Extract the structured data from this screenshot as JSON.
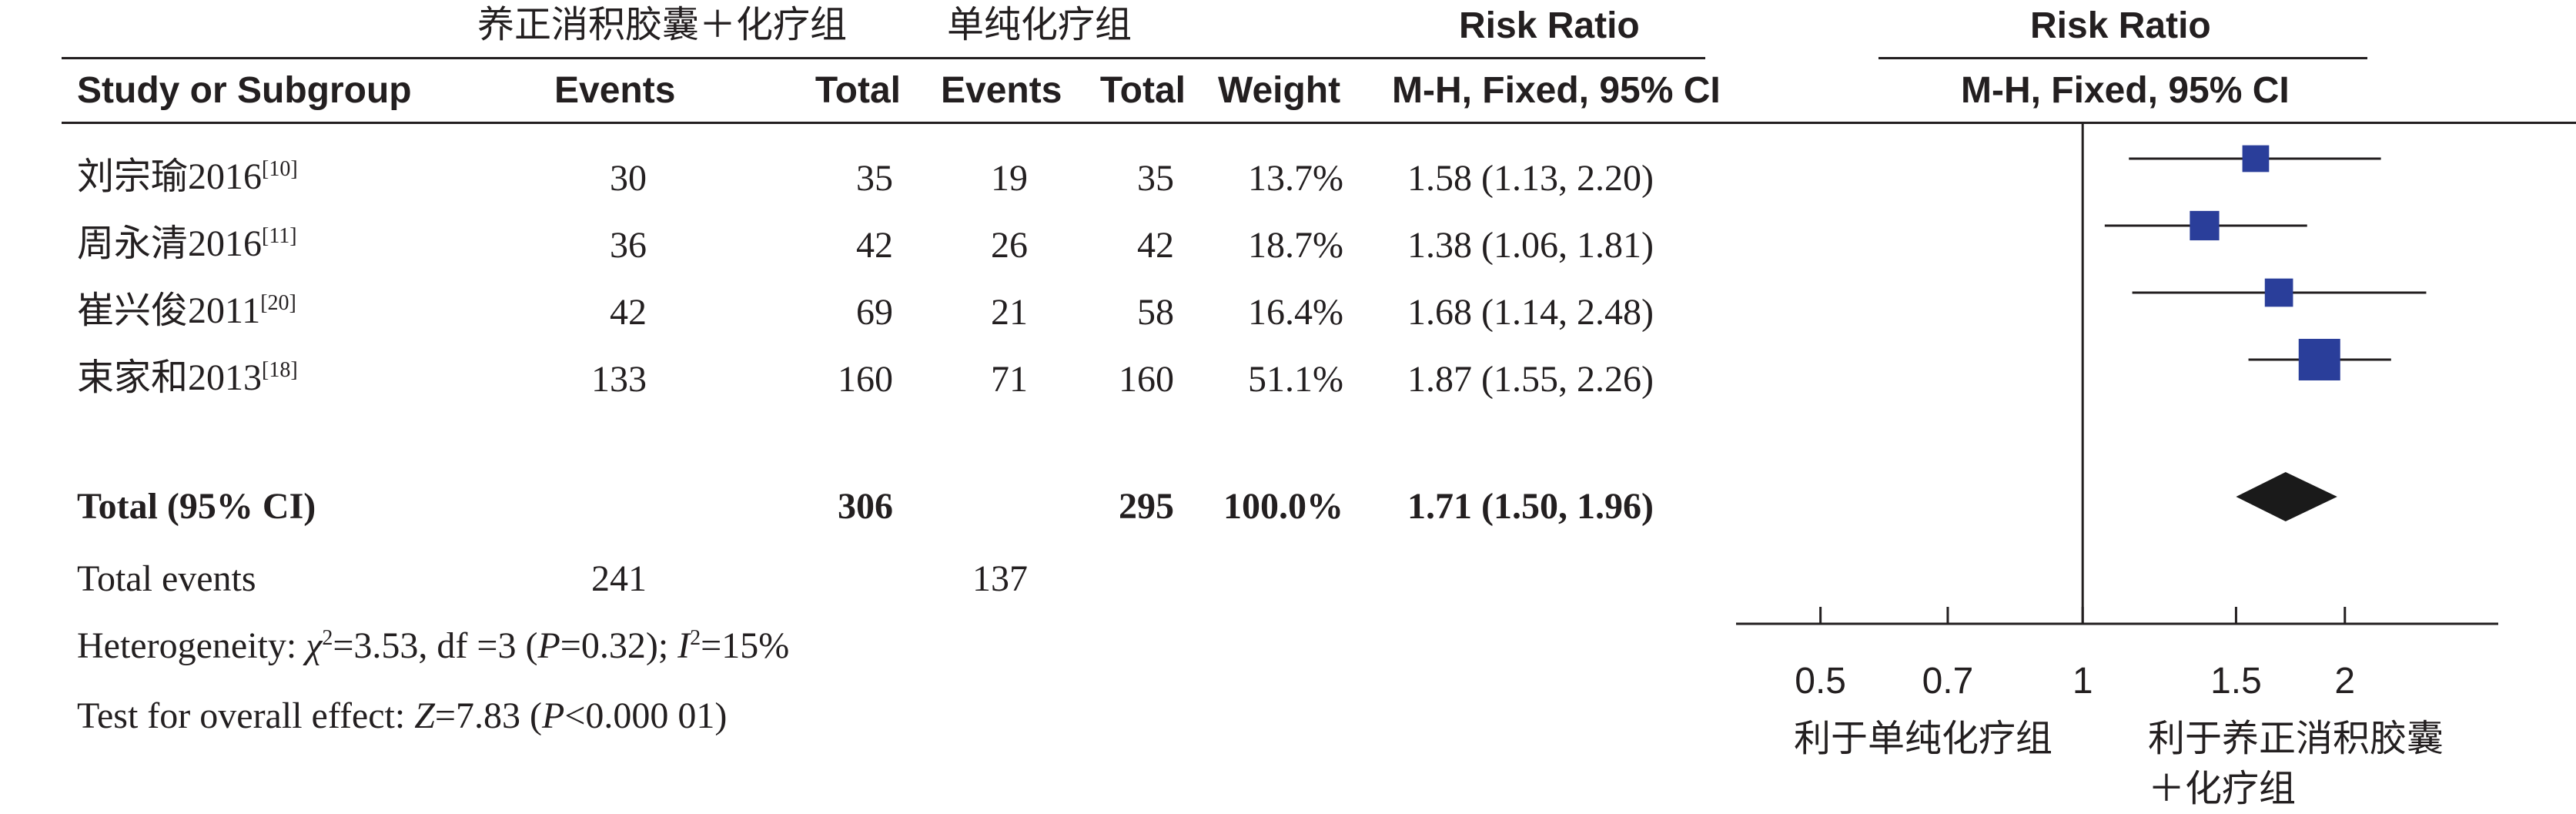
{
  "header": {
    "group_exp": "养正消积胶囊＋化疗组",
    "group_ctrl": "单纯化疗组",
    "risk_ratio": "Risk Ratio",
    "risk_ratio_plot": "Risk Ratio",
    "study": "Study or Subgroup",
    "events_exp": "Events",
    "total_exp": "Total",
    "events_ctrl": "Events",
    "total_ctrl": "Total",
    "weight": "Weight",
    "method": "M-H, Fixed, 95% CI",
    "method_plot": "M-H, Fixed, 95% CI"
  },
  "studies": [
    {
      "name": "刘宗瑜2016",
      "ref": "[10]",
      "e_exp": "30",
      "n_exp": "35",
      "e_ctrl": "19",
      "n_ctrl": "35",
      "weight": "13.7%",
      "ci": "1.58 (1.13, 2.20)"
    },
    {
      "name": "周永清2016",
      "ref": "[11]",
      "e_exp": "36",
      "n_exp": "42",
      "e_ctrl": "26",
      "n_ctrl": "42",
      "weight": "18.7%",
      "ci": "1.38 (1.06, 1.81)"
    },
    {
      "name": "崔兴俊2011",
      "ref": "[20]",
      "e_exp": "42",
      "n_exp": "69",
      "e_ctrl": "21",
      "n_ctrl": "58",
      "weight": "16.4%",
      "ci": "1.68 (1.14, 2.48)"
    },
    {
      "name": "束家和2013",
      "ref": "[18]",
      "e_exp": "133",
      "n_exp": "160",
      "e_ctrl": "71",
      "n_ctrl": "160",
      "weight": "51.1%",
      "ci": "1.87 (1.55, 2.26)"
    }
  ],
  "total": {
    "label": "Total (95% CI)",
    "n_exp": "306",
    "n_ctrl": "295",
    "weight": "100.0%",
    "ci": "1.71 (1.50, 1.96)"
  },
  "total_events": {
    "label": "Total events",
    "exp": "241",
    "ctrl": "137"
  },
  "heterogeneity": {
    "label": "Heterogeneity: ",
    "chi": "χ",
    "chi_sup": "2",
    "chi_rest": "=3.53, df =3 (",
    "p": "P",
    "p_rest": "=0.32); ",
    "i": "I",
    "i_sup": "2",
    "i_rest": "=15%"
  },
  "overall": {
    "label": "Test for overall effect: ",
    "z": "Z",
    "z_rest": "=7.83 (",
    "p": "P",
    "p_rest": "<0.000 01)"
  },
  "axis": {
    "favours_ctrl": "利于单纯化疗组",
    "favours_exp_line1": "利于养正消积胶囊",
    "favours_exp_line2": "＋化疗组"
  },
  "chart_data": {
    "type": "forest",
    "scale": "log",
    "xlim": [
      0.4,
      3.0
    ],
    "ticks": [
      {
        "value": 0.5,
        "label": "0.5"
      },
      {
        "value": 0.7,
        "label": "0.7"
      },
      {
        "value": 1,
        "label": "1"
      },
      {
        "value": 1.5,
        "label": "1.5"
      },
      {
        "value": 2,
        "label": "2"
      }
    ],
    "null_value": 1,
    "studies": [
      {
        "name": "刘宗瑜2016",
        "rr": 1.58,
        "lo": 1.13,
        "hi": 2.2,
        "weight": 13.7
      },
      {
        "name": "周永清2016",
        "rr": 1.38,
        "lo": 1.06,
        "hi": 1.81,
        "weight": 18.7
      },
      {
        "name": "崔兴俊2011",
        "rr": 1.68,
        "lo": 1.14,
        "hi": 2.48,
        "weight": 16.4
      },
      {
        "name": "束家和2013",
        "rr": 1.87,
        "lo": 1.55,
        "hi": 2.26,
        "weight": 51.1
      }
    ],
    "pooled": {
      "rr": 1.71,
      "lo": 1.5,
      "hi": 1.96
    },
    "colors": {
      "square": "#2a3e9a",
      "diamond": "#1a1a1a",
      "line": "#231f20"
    }
  }
}
